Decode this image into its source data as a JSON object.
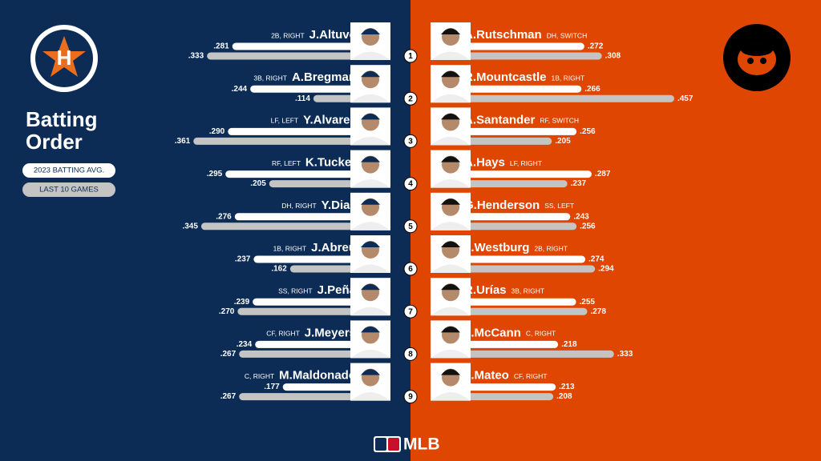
{
  "title": "Batting Order",
  "legend": {
    "avg": "2023 BATTING AVG.",
    "last10": "LAST 10 GAMES"
  },
  "order": [
    1,
    2,
    3,
    4,
    5,
    6,
    7,
    8,
    9
  ],
  "footer": "MLB",
  "home": [
    {
      "name": "J.Altuve",
      "pos": "2B, RIGHT",
      "avg": {
        "value": 0.281,
        "label": ".281"
      },
      "last10": {
        "value": 0.333,
        "label": ".333"
      }
    },
    {
      "name": "A.Bregman",
      "pos": "3B, RIGHT",
      "avg": {
        "value": 0.244,
        "label": ".244"
      },
      "last10": {
        "value": 0.114,
        "label": ".114"
      }
    },
    {
      "name": "Y.Alvarez",
      "pos": "LF, LEFT",
      "avg": {
        "value": 0.29,
        "label": ".290"
      },
      "last10": {
        "value": 0.361,
        "label": ".361"
      }
    },
    {
      "name": "K.Tucker",
      "pos": "RF, LEFT",
      "avg": {
        "value": 0.295,
        "label": ".295"
      },
      "last10": {
        "value": 0.205,
        "label": ".205"
      }
    },
    {
      "name": "Y.Diaz",
      "pos": "DH, RIGHT",
      "avg": {
        "value": 0.276,
        "label": ".276"
      },
      "last10": {
        "value": 0.345,
        "label": ".345"
      }
    },
    {
      "name": "J.Abreu",
      "pos": "1B, RIGHT",
      "avg": {
        "value": 0.237,
        "label": ".237"
      },
      "last10": {
        "value": 0.162,
        "label": ".162"
      }
    },
    {
      "name": "J.Peña",
      "pos": "SS, RIGHT",
      "avg": {
        "value": 0.239,
        "label": ".239"
      },
      "last10": {
        "value": 0.27,
        "label": ".270"
      }
    },
    {
      "name": "J.Meyers",
      "pos": "CF, RIGHT",
      "avg": {
        "value": 0.234,
        "label": ".234"
      },
      "last10": {
        "value": 0.267,
        "label": ".267"
      }
    },
    {
      "name": "M.Maldonado",
      "pos": "C, RIGHT",
      "avg": {
        "value": 0.177,
        "label": ".177"
      },
      "last10": {
        "value": 0.267,
        "label": ".267"
      }
    }
  ],
  "away": [
    {
      "name": "A.Rutschman",
      "pos": "DH, SWITCH",
      "avg": {
        "value": 0.272,
        "label": ".272"
      },
      "last10": {
        "value": 0.308,
        "label": ".308"
      }
    },
    {
      "name": "R.Mountcastle",
      "pos": "1B, RIGHT",
      "avg": {
        "value": 0.266,
        "label": ".266"
      },
      "last10": {
        "value": 0.457,
        "label": ".457"
      }
    },
    {
      "name": "A.Santander",
      "pos": "RF, SWITCH",
      "avg": {
        "value": 0.256,
        "label": ".256"
      },
      "last10": {
        "value": 0.205,
        "label": ".205"
      }
    },
    {
      "name": "A.Hays",
      "pos": "LF, RIGHT",
      "avg": {
        "value": 0.287,
        "label": ".287"
      },
      "last10": {
        "value": 0.237,
        "label": ".237"
      }
    },
    {
      "name": "G.Henderson",
      "pos": "SS, LEFT",
      "avg": {
        "value": 0.243,
        "label": ".243"
      },
      "last10": {
        "value": 0.256,
        "label": ".256"
      }
    },
    {
      "name": "J.Westburg",
      "pos": "2B, RIGHT",
      "avg": {
        "value": 0.274,
        "label": ".274"
      },
      "last10": {
        "value": 0.294,
        "label": ".294"
      }
    },
    {
      "name": "R.Urías",
      "pos": "3B, RIGHT",
      "avg": {
        "value": 0.255,
        "label": ".255"
      },
      "last10": {
        "value": 0.278,
        "label": ".278"
      }
    },
    {
      "name": "J.McCann",
      "pos": "C, RIGHT",
      "avg": {
        "value": 0.218,
        "label": ".218"
      },
      "last10": {
        "value": 0.333,
        "label": ".333"
      }
    },
    {
      "name": "J.Mateo",
      "pos": "CF, RIGHT",
      "avg": {
        "value": 0.213,
        "label": ".213"
      },
      "last10": {
        "value": 0.208,
        "label": ".208"
      }
    }
  ]
}
